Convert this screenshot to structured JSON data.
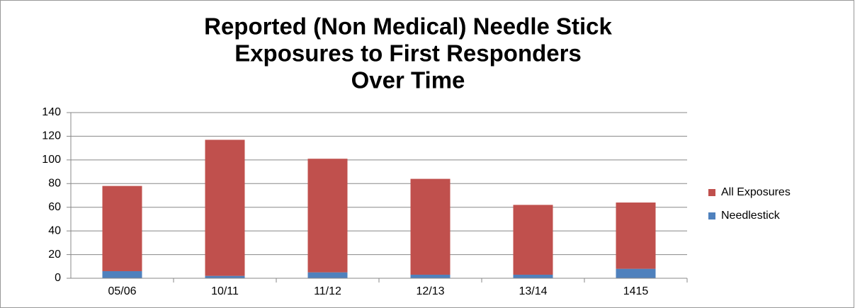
{
  "chart_data": {
    "type": "stacked_bar",
    "title": [
      "Reported (Non Medical) Needle Stick",
      "Exposures to First Responders",
      "Over Time"
    ],
    "categories": [
      "05/06",
      "10/11",
      "11/12",
      "12/13",
      "13/14",
      "1415"
    ],
    "series": [
      {
        "name": "Needlestick",
        "color": "#4f81bd",
        "values": [
          6,
          2,
          5,
          3,
          3,
          8
        ]
      },
      {
        "name": "All Exposures",
        "color": "#c0504d",
        "values": [
          72,
          115,
          96,
          81,
          59,
          56
        ]
      }
    ],
    "ylim": [
      0,
      140
    ],
    "yticks": [
      0,
      20,
      40,
      60,
      80,
      100,
      120,
      140
    ],
    "grid": true,
    "legend": "right"
  }
}
